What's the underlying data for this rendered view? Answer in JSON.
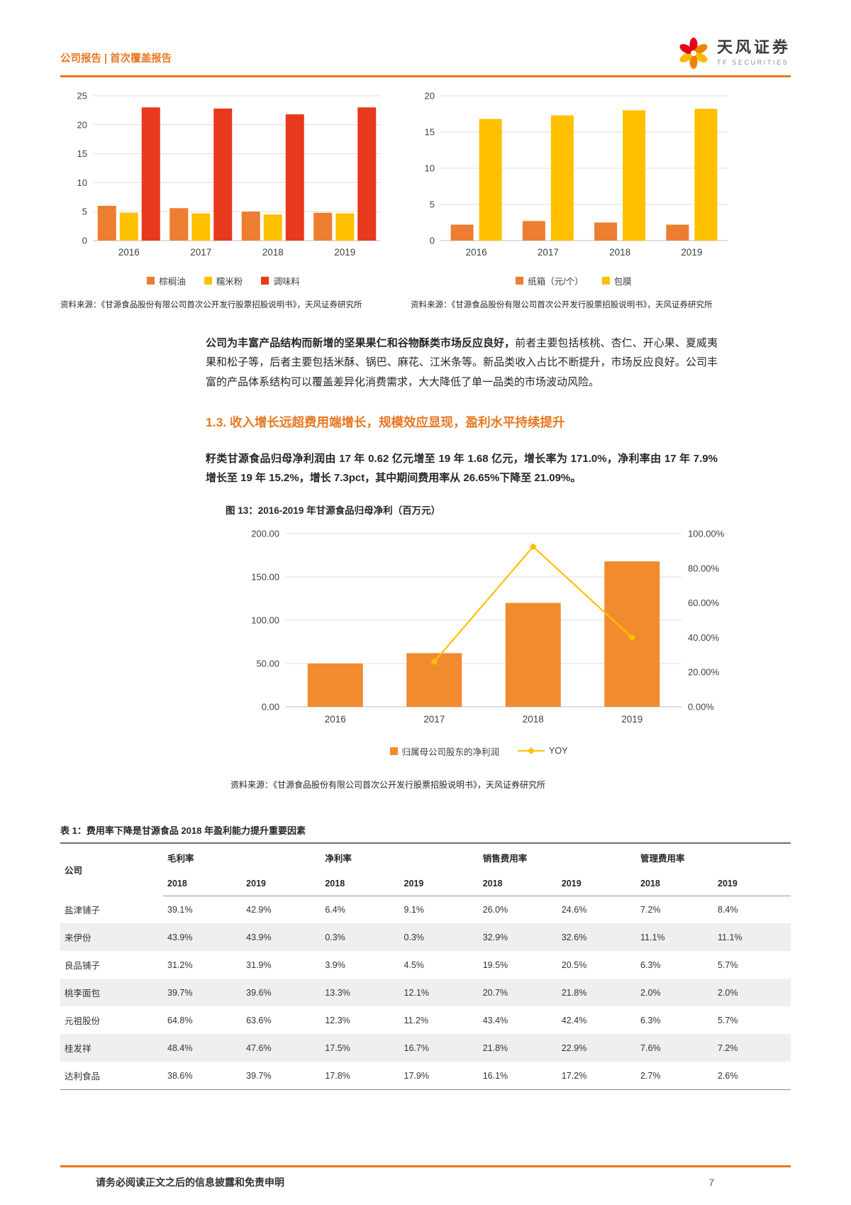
{
  "header": {
    "report_type": "公司报告 | 首次覆盖报告",
    "brand": "天风证券",
    "brand_en": "TF SECURITIES"
  },
  "body": {
    "p1_bold": "公司为丰富产品结构而新增的坚果果仁和谷物酥类市场反应良好，",
    "p1_rest": "前者主要包括核桃、杏仁、开心果、夏威夷果和松子等，后者主要包括米酥、锅巴、麻花、江米条等。新品类收入占比不断提升，市场反应良好。公司丰富的产品体系结构可以覆盖差异化消费需求，大大降低了单一品类的市场波动风险。",
    "section_heading": "1.3. 收入增长远超费用端增长，规模效应显现，盈利水平持续提升",
    "p2": "籽类甘源食品归母净利润由 17 年 0.62 亿元增至 19 年 1.68 亿元，增长率为 171.0%，净利率由 17 年 7.9%增长至 19 年 15.2%，增长 7.3pct，其中期间费用率从 26.65%下降至 21.09%。"
  },
  "chart_data": [
    {
      "type": "bar",
      "title": "",
      "categories": [
        "2016",
        "2017",
        "2018",
        "2019"
      ],
      "series": [
        {
          "name": "棕榈油",
          "color": "#ED7D31",
          "values": [
            6.0,
            5.6,
            5.0,
            4.8
          ]
        },
        {
          "name": "糯米粉",
          "color": "#FFC000",
          "values": [
            4.8,
            4.7,
            4.5,
            4.7
          ]
        },
        {
          "name": "调味料",
          "color": "#E8391D",
          "values": [
            23.0,
            22.8,
            21.8,
            23.0
          ]
        }
      ],
      "ylim": [
        0,
        25
      ],
      "yticks": [
        "0",
        "5",
        "10",
        "15",
        "20",
        "25"
      ],
      "grid": true,
      "legend_position": "bottom",
      "source": "资料来源：《甘源食品股份有限公司首次公开发行股票招股说明书》，天风证券研究所"
    },
    {
      "type": "bar",
      "title": "",
      "categories": [
        "2016",
        "2017",
        "2018",
        "2019"
      ],
      "series": [
        {
          "name": "纸箱（元/个）",
          "color": "#ED7D31",
          "values": [
            2.2,
            2.7,
            2.5,
            2.2
          ]
        },
        {
          "name": "包膜",
          "color": "#FFC000",
          "values": [
            16.8,
            17.3,
            18.0,
            18.2
          ]
        }
      ],
      "ylim": [
        0,
        20
      ],
      "yticks": [
        "0",
        "5",
        "10",
        "15",
        "20"
      ],
      "grid": true,
      "legend_position": "bottom",
      "source": "资料来源：《甘源食品股份有限公司首次公开发行股票招股说明书》，天风证券研究所"
    },
    {
      "type": "bar+line",
      "title": "图 13：2016-2019 年甘源食品归母净利（百万元）",
      "categories": [
        "2016",
        "2017",
        "2018",
        "2019"
      ],
      "bar_series": {
        "name": "归属母公司股东的净利润",
        "color": "#F28A2E",
        "values": [
          50,
          62,
          120,
          168
        ]
      },
      "line_series": {
        "name": "YOY",
        "color": "#FFC000",
        "values": [
          null,
          26.0,
          92.5,
          40.0
        ]
      },
      "ylim": [
        0,
        200
      ],
      "yticks": [
        "0.00",
        "50.00",
        "100.00",
        "150.00",
        "200.00"
      ],
      "y2lim": [
        0,
        100
      ],
      "y2ticks": [
        "0.00%",
        "20.00%",
        "40.00%",
        "60.00%",
        "80.00%",
        "100.00%"
      ],
      "grid": true,
      "legend_position": "bottom",
      "source": "资料来源：《甘源食品股份有限公司首次公开发行股票招股说明书》，天风证券研究所"
    }
  ],
  "table": {
    "title": "表 1：费用率下降是甘源食品 2018 年盈利能力提升重要因素",
    "company_header": "公司",
    "groups": [
      "毛利率",
      "净利率",
      "销售费用率",
      "管理费用率"
    ],
    "years": [
      "2018",
      "2019"
    ],
    "rows": [
      {
        "company": "盐津铺子",
        "values": [
          "39.1%",
          "42.9%",
          "6.4%",
          "9.1%",
          "26.0%",
          "24.6%",
          "7.2%",
          "8.4%"
        ]
      },
      {
        "company": "来伊份",
        "values": [
          "43.9%",
          "43.9%",
          "0.3%",
          "0.3%",
          "32.9%",
          "32.6%",
          "11.1%",
          "11.1%"
        ]
      },
      {
        "company": "良品铺子",
        "values": [
          "31.2%",
          "31.9%",
          "3.9%",
          "4.5%",
          "19.5%",
          "20.5%",
          "6.3%",
          "5.7%"
        ]
      },
      {
        "company": "桃李面包",
        "values": [
          "39.7%",
          "39.6%",
          "13.3%",
          "12.1%",
          "20.7%",
          "21.8%",
          "2.0%",
          "2.0%"
        ]
      },
      {
        "company": "元祖股份",
        "values": [
          "64.8%",
          "63.6%",
          "12.3%",
          "11.2%",
          "43.4%",
          "42.4%",
          "6.3%",
          "5.7%"
        ]
      },
      {
        "company": "桂发祥",
        "values": [
          "48.4%",
          "47.6%",
          "17.5%",
          "16.7%",
          "21.8%",
          "22.9%",
          "7.6%",
          "7.2%"
        ]
      },
      {
        "company": "达利食品",
        "values": [
          "38.6%",
          "39.7%",
          "17.8%",
          "17.9%",
          "16.1%",
          "17.2%",
          "2.7%",
          "2.6%"
        ]
      }
    ]
  },
  "footer": {
    "disclaimer": "请务必阅读正文之后的信息披露和免责申明",
    "page_number": "7"
  }
}
